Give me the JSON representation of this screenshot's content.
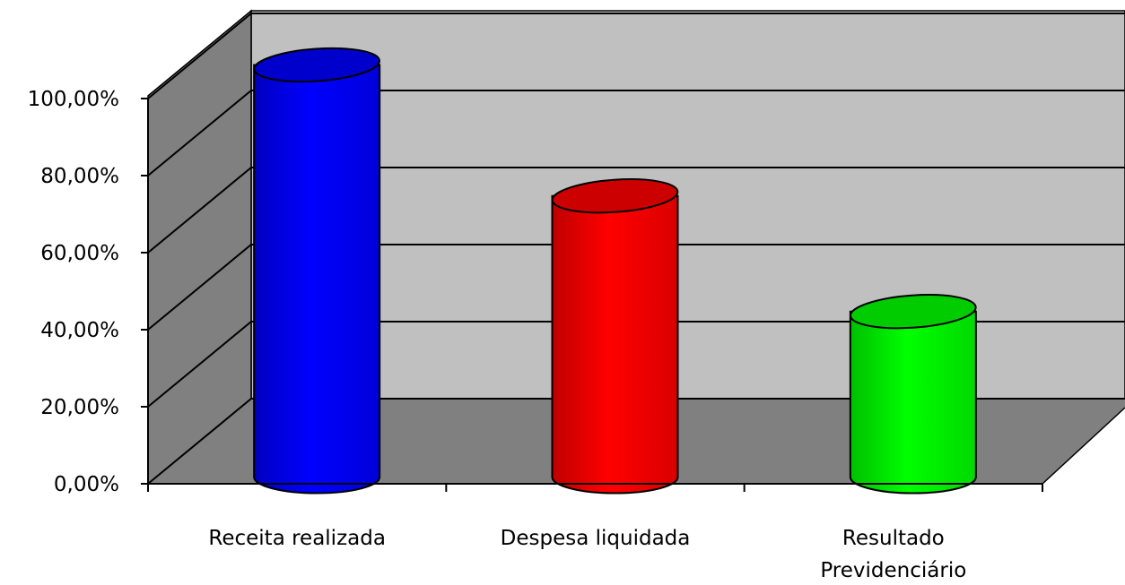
{
  "chart_data": {
    "type": "bar",
    "style": "3d-cylinder",
    "categories": [
      [
        "Receita realizada"
      ],
      [
        "Despesa liquidada"
      ],
      [
        "Resultado",
        "Previdenciário"
      ]
    ],
    "values": [
      100.0,
      66.0,
      36.0
    ],
    "bar_colors": [
      "#0000ff",
      "#ff0000",
      "#00ff00"
    ],
    "title": "",
    "xlabel": "",
    "ylabel": "",
    "ylim": [
      0,
      100
    ],
    "yticks": [
      0,
      20,
      40,
      60,
      80,
      100
    ],
    "ytick_labels": [
      "0,00%",
      "20,00%",
      "40,00%",
      "60,00%",
      "80,00%",
      "100,00%"
    ],
    "grid": true,
    "legend": "none",
    "colors": {
      "back_wall": "#c0c0c0",
      "side_wall": "#808080",
      "floor": "#808080",
      "gridlines": "#000000"
    }
  }
}
